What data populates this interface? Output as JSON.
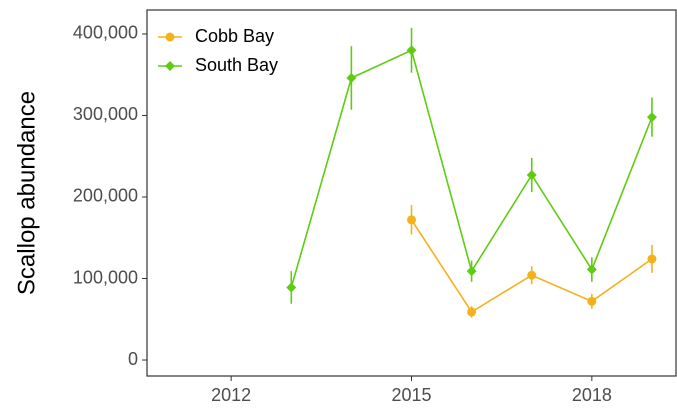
{
  "chart_data": {
    "type": "line",
    "ylabel": "Scallop abundance",
    "x": [
      2013,
      2014,
      2015,
      2016,
      2017,
      2018,
      2019
    ],
    "series": [
      {
        "name": "Cobb Bay",
        "color": "#f5b11b",
        "marker": "circle",
        "values": [
          null,
          null,
          172000,
          59000,
          104000,
          72000,
          124000
        ],
        "errors": [
          null,
          null,
          18000,
          7000,
          11000,
          9000,
          17000
        ]
      },
      {
        "name": "South Bay",
        "color": "#5fcc12",
        "marker": "diamond",
        "values": [
          89000,
          346000,
          380000,
          109000,
          227000,
          111000,
          298000
        ],
        "errors": [
          20000,
          39000,
          27500,
          13000,
          21000,
          15000,
          24000
        ]
      }
    ],
    "xlim": [
      2010.6,
      2019.4
    ],
    "ylim": [
      -19600,
      429400
    ],
    "xticks": [
      2012,
      2015,
      2018
    ],
    "yticks": [
      0,
      {
        "value": 100000,
        "label": "100,000"
      },
      {
        "value": 200000,
        "label": "200,000"
      },
      {
        "value": 300000,
        "label": "300,000"
      },
      {
        "value": 400000,
        "label": "400,000"
      }
    ],
    "legend": "top-left",
    "grid": false
  }
}
